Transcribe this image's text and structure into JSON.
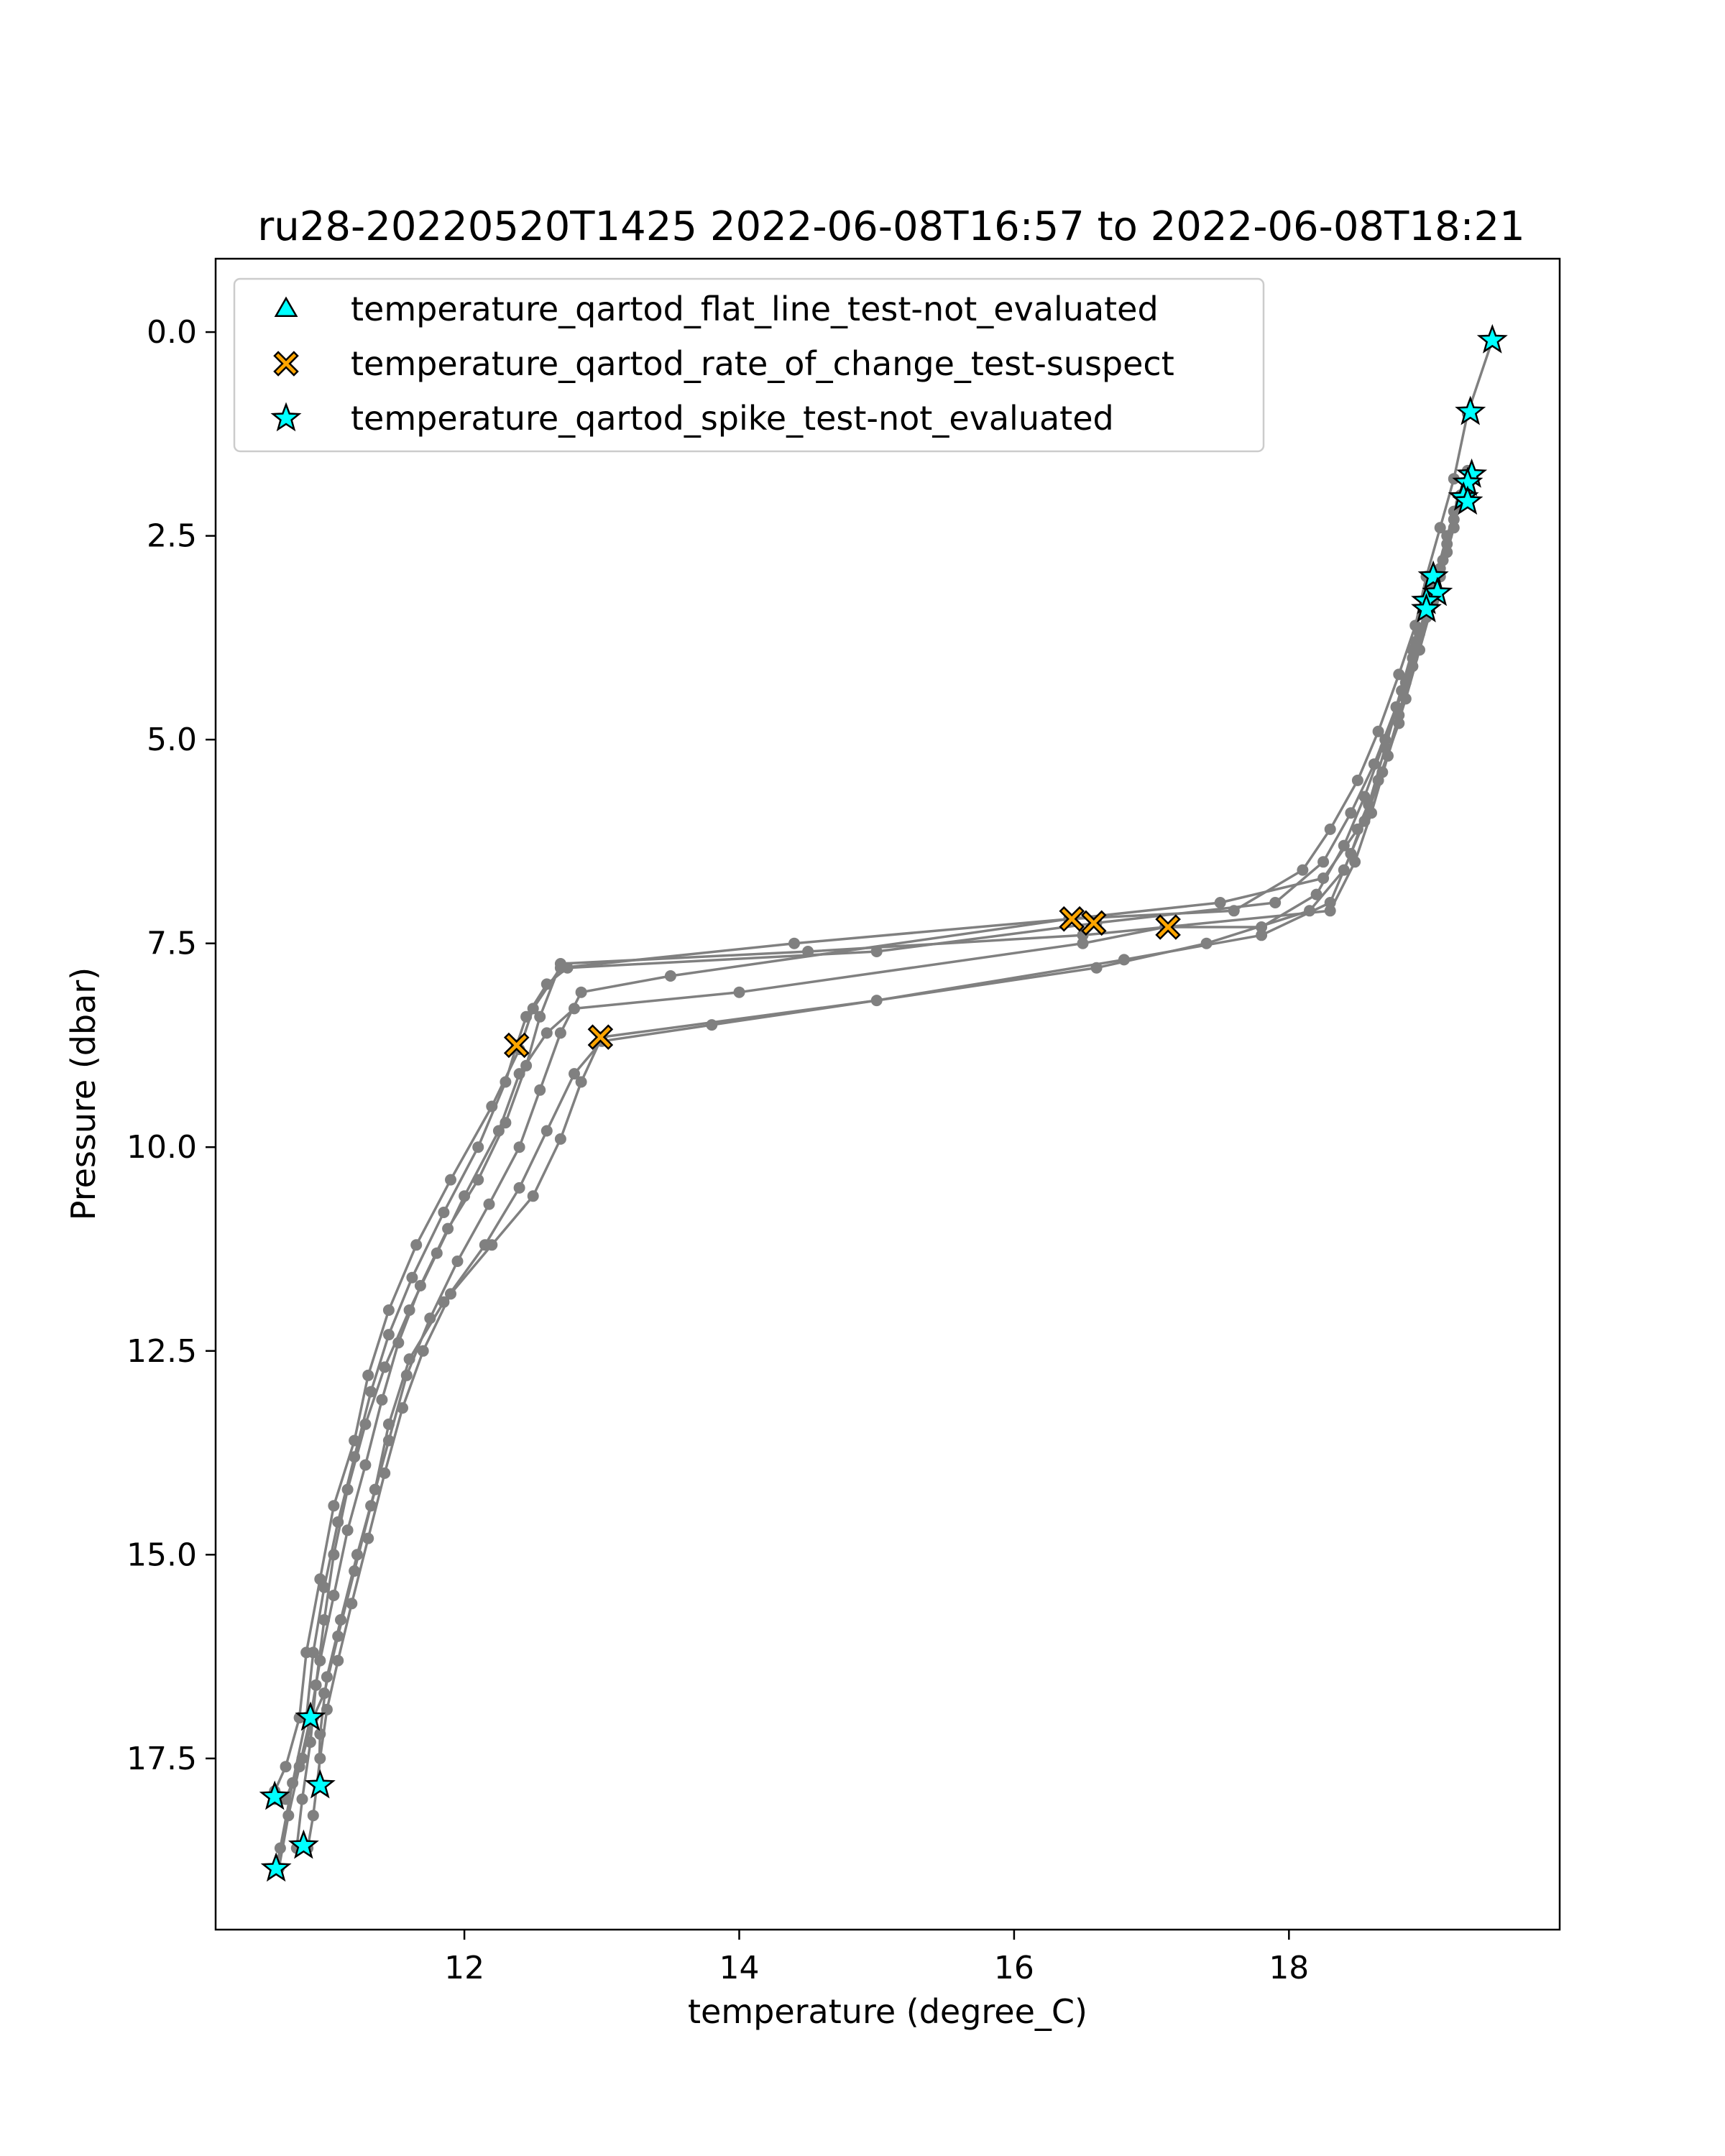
{
  "chart_data": {
    "type": "scatter",
    "title": "ru28-20220520T1425 2022-06-08T16:57 to 2022-06-08T18:21",
    "xlabel": "temperature (degree_C)",
    "ylabel": "Pressure (dbar)",
    "xlim": [
      10.19,
      19.97
    ],
    "ylim": [
      19.6,
      -0.9
    ],
    "y_inverted": true,
    "x_ticks": [
      12,
      14,
      16,
      18
    ],
    "x_tick_labels": [
      "12",
      "14",
      "16",
      "18"
    ],
    "y_ticks": [
      0.0,
      2.5,
      5.0,
      7.5,
      10.0,
      12.5,
      15.0,
      17.5
    ],
    "y_tick_labels": [
      "0.0",
      "2.5",
      "5.0",
      "7.5",
      "10.0",
      "12.5",
      "15.0",
      "17.5"
    ],
    "grid": false,
    "legend_position": "upper-left",
    "profile_color": "#808080",
    "profiles": [
      [
        [
          19.48,
          0.1
        ],
        [
          19.3,
          1.0
        ],
        [
          19.2,
          1.8
        ],
        [
          19.1,
          2.4
        ],
        [
          19.0,
          3.0
        ],
        [
          18.92,
          3.6
        ],
        [
          18.8,
          4.2
        ],
        [
          18.65,
          4.9
        ],
        [
          18.5,
          5.5
        ],
        [
          18.3,
          6.1
        ],
        [
          18.1,
          6.6
        ],
        [
          17.6,
          7.1
        ],
        [
          16.4,
          7.2
        ],
        [
          14.4,
          7.5
        ],
        [
          12.7,
          7.8
        ],
        [
          12.5,
          8.3
        ],
        [
          12.4,
          8.8
        ],
        [
          12.2,
          9.5
        ],
        [
          11.9,
          10.4
        ],
        [
          11.65,
          11.2
        ],
        [
          11.45,
          12.0
        ],
        [
          11.3,
          12.8
        ],
        [
          11.2,
          13.6
        ],
        [
          11.05,
          14.4
        ],
        [
          10.95,
          15.3
        ],
        [
          10.85,
          16.2
        ],
        [
          10.8,
          17.0
        ],
        [
          10.7,
          17.6
        ],
        [
          10.62,
          17.9
        ]
      ],
      [
        [
          19.25,
          2.0
        ],
        [
          19.15,
          2.5
        ],
        [
          19.05,
          3.1
        ],
        [
          18.95,
          3.7
        ],
        [
          18.85,
          4.3
        ],
        [
          18.7,
          5.0
        ],
        [
          18.55,
          5.7
        ],
        [
          18.4,
          6.3
        ],
        [
          18.2,
          6.9
        ],
        [
          17.8,
          7.3
        ],
        [
          17.1,
          7.3
        ],
        [
          16.5,
          7.5
        ],
        [
          14.0,
          8.1
        ],
        [
          12.8,
          8.3
        ],
        [
          12.6,
          8.6
        ],
        [
          12.4,
          9.1
        ],
        [
          12.25,
          9.8
        ],
        [
          12.0,
          10.6
        ],
        [
          11.8,
          11.3
        ],
        [
          11.6,
          12.0
        ],
        [
          11.42,
          12.7
        ],
        [
          11.28,
          13.4
        ],
        [
          11.15,
          14.2
        ],
        [
          11.05,
          15.0
        ],
        [
          10.98,
          15.8
        ],
        [
          10.92,
          16.6
        ],
        [
          10.88,
          17.3
        ],
        [
          10.82,
          18.0
        ],
        [
          10.78,
          18.6
        ]
      ],
      [
        [
          19.3,
          1.7
        ],
        [
          19.2,
          2.2
        ],
        [
          19.12,
          2.8
        ],
        [
          19.02,
          3.3
        ],
        [
          18.9,
          3.9
        ],
        [
          18.78,
          4.6
        ],
        [
          18.62,
          5.3
        ],
        [
          18.45,
          5.9
        ],
        [
          18.25,
          6.5
        ],
        [
          17.9,
          7.0
        ],
        [
          16.6,
          7.25
        ],
        [
          15.0,
          7.6
        ],
        [
          12.75,
          7.8
        ],
        [
          12.6,
          8.0
        ],
        [
          12.45,
          8.4
        ],
        [
          12.38,
          8.75
        ],
        [
          12.3,
          9.2
        ],
        [
          12.1,
          10.0
        ],
        [
          11.85,
          10.8
        ],
        [
          11.62,
          11.6
        ],
        [
          11.45,
          12.3
        ],
        [
          11.32,
          13.0
        ],
        [
          11.2,
          13.8
        ],
        [
          11.08,
          14.6
        ],
        [
          10.98,
          15.4
        ],
        [
          10.9,
          16.2
        ],
        [
          10.85,
          17.0
        ],
        [
          10.75,
          17.8
        ],
        [
          10.66,
          18.6
        ],
        [
          10.63,
          18.85
        ]
      ],
      [
        [
          19.2,
          2.3
        ],
        [
          19.1,
          2.9
        ],
        [
          19.0,
          3.4
        ],
        [
          18.9,
          4.0
        ],
        [
          18.8,
          4.7
        ],
        [
          18.68,
          5.4
        ],
        [
          18.55,
          6.0
        ],
        [
          18.4,
          6.6
        ],
        [
          18.15,
          7.1
        ],
        [
          17.4,
          7.5
        ],
        [
          16.6,
          7.8
        ],
        [
          13.8,
          8.5
        ],
        [
          13.0,
          8.7
        ],
        [
          12.8,
          9.1
        ],
        [
          12.6,
          9.8
        ],
        [
          12.4,
          10.5
        ],
        [
          12.15,
          11.2
        ],
        [
          11.85,
          11.9
        ],
        [
          11.6,
          12.6
        ],
        [
          11.45,
          13.4
        ],
        [
          11.35,
          14.2
        ],
        [
          11.22,
          15.0
        ],
        [
          11.1,
          15.8
        ],
        [
          11.0,
          16.5
        ],
        [
          10.95,
          17.2
        ],
        [
          10.94,
          17.85
        ]
      ],
      [
        [
          19.25,
          2.1
        ],
        [
          19.15,
          2.6
        ],
        [
          19.05,
          3.2
        ],
        [
          18.92,
          3.8
        ],
        [
          18.82,
          4.4
        ],
        [
          18.7,
          5.1
        ],
        [
          18.58,
          5.8
        ],
        [
          18.45,
          6.4
        ],
        [
          18.3,
          7.0
        ],
        [
          17.8,
          7.4
        ],
        [
          16.8,
          7.7
        ],
        [
          15.0,
          8.2
        ],
        [
          13.0,
          8.65
        ],
        [
          12.85,
          9.2
        ],
        [
          12.7,
          9.9
        ],
        [
          12.5,
          10.6
        ],
        [
          12.2,
          11.2
        ],
        [
          11.9,
          11.8
        ],
        [
          11.7,
          12.5
        ],
        [
          11.55,
          13.2
        ],
        [
          11.42,
          14.0
        ],
        [
          11.3,
          14.8
        ],
        [
          11.18,
          15.6
        ],
        [
          11.08,
          16.3
        ],
        [
          11.0,
          16.9
        ],
        [
          10.95,
          17.5
        ],
        [
          10.9,
          18.2
        ],
        [
          10.86,
          18.6
        ]
      ],
      [
        [
          19.15,
          2.7
        ],
        [
          19.05,
          3.3
        ],
        [
          18.95,
          3.9
        ],
        [
          18.85,
          4.5
        ],
        [
          18.72,
          5.2
        ],
        [
          18.6,
          5.9
        ],
        [
          18.48,
          6.5
        ],
        [
          18.3,
          7.1
        ],
        [
          17.1,
          7.3
        ],
        [
          16.5,
          7.4
        ],
        [
          14.5,
          7.6
        ],
        [
          12.7,
          7.75
        ],
        [
          12.55,
          8.4
        ],
        [
          12.45,
          9.0
        ],
        [
          12.3,
          9.7
        ],
        [
          12.1,
          10.4
        ],
        [
          11.88,
          11.0
        ],
        [
          11.68,
          11.7
        ],
        [
          11.52,
          12.4
        ],
        [
          11.4,
          13.1
        ],
        [
          11.28,
          13.9
        ],
        [
          11.15,
          14.7
        ],
        [
          11.05,
          15.5
        ],
        [
          10.95,
          16.3
        ],
        [
          10.88,
          17.0
        ],
        [
          10.8,
          17.6
        ],
        [
          10.72,
          18.2
        ],
        [
          10.65,
          18.85
        ]
      ],
      [
        [
          19.2,
          2.4
        ],
        [
          19.1,
          3.0
        ],
        [
          19.0,
          3.5
        ],
        [
          18.9,
          4.1
        ],
        [
          18.8,
          4.8
        ],
        [
          18.65,
          5.5
        ],
        [
          18.5,
          6.1
        ],
        [
          18.25,
          6.7
        ],
        [
          17.5,
          7.0
        ],
        [
          16.4,
          7.2
        ],
        [
          13.5,
          7.9
        ],
        [
          12.85,
          8.1
        ],
        [
          12.7,
          8.6
        ],
        [
          12.55,
          9.3
        ],
        [
          12.4,
          10.0
        ],
        [
          12.18,
          10.7
        ],
        [
          11.95,
          11.4
        ],
        [
          11.75,
          12.1
        ],
        [
          11.58,
          12.8
        ],
        [
          11.45,
          13.6
        ],
        [
          11.32,
          14.4
        ],
        [
          11.2,
          15.2
        ],
        [
          11.08,
          16.0
        ],
        [
          10.98,
          16.7
        ],
        [
          10.9,
          17.0
        ],
        [
          10.82,
          17.5
        ],
        [
          10.7,
          18.0
        ],
        [
          10.62,
          18.0
        ]
      ]
    ],
    "flagged_points": [
      {
        "test": "temperature_qartod_rate_of_change_test-suspect",
        "points": [
          [
            16.42,
            7.2
          ],
          [
            16.58,
            7.25
          ],
          [
            17.12,
            7.3
          ],
          [
            12.38,
            8.75
          ],
          [
            12.99,
            8.65
          ]
        ]
      },
      {
        "test": "temperature_qartod_spike_test-not_evaluated",
        "points": [
          [
            19.48,
            0.1
          ],
          [
            19.32,
            0.98
          ],
          [
            19.33,
            1.75
          ],
          [
            19.3,
            1.85
          ],
          [
            19.27,
            2.03
          ],
          [
            19.3,
            2.08
          ],
          [
            19.05,
            3.0
          ],
          [
            19.08,
            3.2
          ],
          [
            19.0,
            3.3
          ],
          [
            19.0,
            3.4
          ],
          [
            10.62,
            17.97
          ],
          [
            10.88,
            17.0
          ],
          [
            10.95,
            17.83
          ],
          [
            10.83,
            18.57
          ],
          [
            10.63,
            18.85
          ]
        ]
      },
      {
        "test": "temperature_qartod_flat_line_test-not_evaluated",
        "points": []
      }
    ],
    "legend": [
      {
        "label": "temperature_qartod_flat_line_test-not_evaluated",
        "marker": "triangle",
        "color": "#00ffff"
      },
      {
        "label": "temperature_qartod_rate_of_change_test-suspect",
        "marker": "x",
        "color": "#ffa500"
      },
      {
        "label": "temperature_qartod_spike_test-not_evaluated",
        "marker": "star",
        "color": "#00ffff"
      }
    ]
  }
}
